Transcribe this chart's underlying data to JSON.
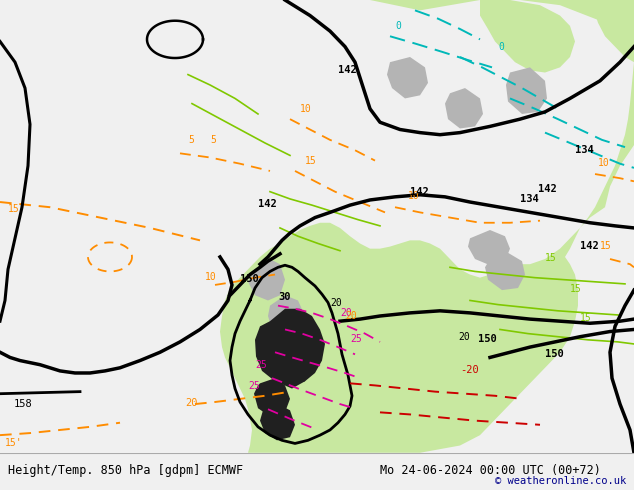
{
  "title_left": "Height/Temp. 850 hPa [gdpm] ECMWF",
  "title_right": "Mo 24-06-2024 00:00 UTC (00+72)",
  "copyright": "© weatheronline.co.uk",
  "bg_color": "#f0f0f0",
  "map_bg": "#f0f0f0",
  "bottom_bar_color": "#e8e8e8",
  "bottom_text_color": "#000000",
  "copyright_color": "#00008b",
  "figsize": [
    6.34,
    4.9
  ],
  "dpi": 100,
  "bottom_bar_height": 0.076,
  "colors": {
    "land_green": "#c8e8a0",
    "land_gray": "#b4b4b4",
    "ocean_white": "#f0f0f0",
    "black_contour": "#000000",
    "orange_dashed": "#ff8c00",
    "lime_contour": "#80c800",
    "cyan_contour": "#00b8b8",
    "magenta_dashed": "#e000a0",
    "red_dashed": "#cc0000",
    "dark_fill": "#202020"
  }
}
